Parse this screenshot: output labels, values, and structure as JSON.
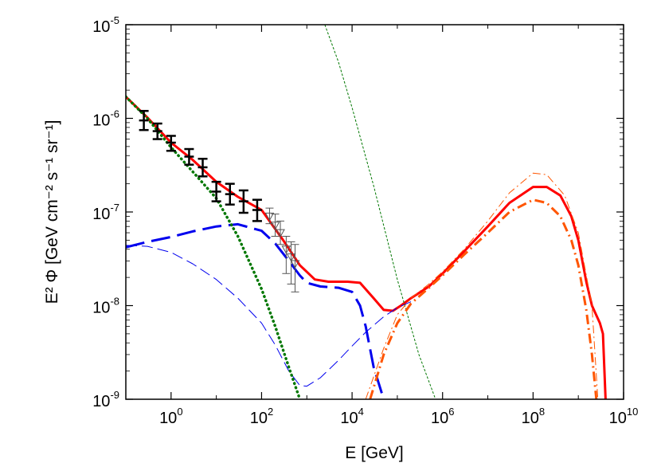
{
  "chart_data": {
    "type": "line",
    "title": "",
    "xlabel": "E [GeV]",
    "ylabel": "E² Φ [GeV cm⁻² s⁻¹ sr⁻¹]",
    "xscale": "log",
    "yscale": "log",
    "xlim": [
      0.1,
      10000000000.0
    ],
    "ylim": [
      1e-09,
      1e-05
    ],
    "x_ticks": [
      {
        "base": "10",
        "exp": "0",
        "value": 1
      },
      {
        "base": "10",
        "exp": "2",
        "value": 100
      },
      {
        "base": "10",
        "exp": "4",
        "value": 10000
      },
      {
        "base": "10",
        "exp": "6",
        "value": 1000000
      },
      {
        "base": "10",
        "exp": "8",
        "value": 100000000
      },
      {
        "base": "10",
        "exp": "10",
        "value": 10000000000
      }
    ],
    "y_ticks": [
      {
        "base": "10",
        "exp": "-9",
        "value": 1e-09
      },
      {
        "base": "10",
        "exp": "-8",
        "value": 1e-08
      },
      {
        "base": "10",
        "exp": "-7",
        "value": 1e-07
      },
      {
        "base": "10",
        "exp": "-6",
        "value": 1e-06
      },
      {
        "base": "10",
        "exp": "-5",
        "value": 1e-05
      }
    ],
    "grid": false,
    "legend": "none",
    "series": [
      {
        "id": "total",
        "color": "#ff0000",
        "style": "solid",
        "width": 3,
        "x": [
          0.1,
          0.3,
          1,
          3,
          10,
          30,
          100,
          300,
          700,
          1500,
          3000,
          8000,
          15000,
          30000,
          50000,
          80000,
          120000,
          200000,
          500000,
          1000000,
          3000000,
          10000000,
          30000000,
          100000000,
          200000000,
          400000000,
          700000000,
          1000000000,
          1500000000,
          2000000000,
          3000000000,
          3500000000,
          4000000000
        ],
        "y": [
          1.7e-06,
          1.02e-06,
          5.5e-07,
          3.6e-07,
          2.1e-07,
          1.45e-07,
          1.05e-07,
          5e-08,
          2.7e-08,
          1.9e-08,
          1.8e-08,
          1.8e-08,
          1.75e-08,
          1.2e-08,
          9e-09,
          8.8e-09,
          1e-08,
          1.2e-08,
          1.6e-08,
          2.2e-08,
          3.8e-08,
          7e-08,
          1.25e-07,
          1.85e-07,
          1.85e-07,
          1.5e-07,
          9e-08,
          5e-08,
          1.8e-08,
          1e-08,
          6.5e-09,
          5e-09,
          1e-09
        ]
      },
      {
        "id": "dashed-thick",
        "color": "#0000ee",
        "style": "dash-long",
        "width": 3,
        "x": [
          0.1,
          0.3,
          1,
          3,
          10,
          30,
          100,
          200,
          400,
          700,
          1000,
          2000,
          5000,
          10000,
          15000,
          20000,
          30000,
          50000
        ],
        "y": [
          4.2e-08,
          4.8e-08,
          5.4e-08,
          6.2e-08,
          7e-08,
          7.4e-08,
          6.3e-08,
          4.6e-08,
          3e-08,
          2.1e-08,
          1.75e-08,
          1.6e-08,
          1.55e-08,
          1.4e-08,
          1e-08,
          6e-09,
          2.2e-09,
          1e-09
        ]
      },
      {
        "id": "dashed-thin",
        "color": "#0000ee",
        "style": "dash",
        "width": 1,
        "x": [
          0.1,
          0.3,
          1,
          3,
          10,
          30,
          100,
          200,
          400,
          700,
          1000,
          2000,
          5000,
          10000,
          20000,
          50000,
          100000,
          200000
        ],
        "y": [
          4.4e-08,
          4.3e-08,
          3.7e-08,
          2.8e-08,
          1.9e-08,
          1.2e-08,
          6.5e-09,
          3.8e-09,
          2e-09,
          1.4e-09,
          1.38e-09,
          1.7e-09,
          2.6e-09,
          3.7e-09,
          5.2e-09,
          7.6e-09,
          9.5e-09,
          1.1e-08
        ]
      },
      {
        "id": "dotted-thick",
        "color": "#007700",
        "style": "dot",
        "width": 3.5,
        "x": [
          0.1,
          0.3,
          1,
          3,
          10,
          30,
          100,
          200,
          400,
          700
        ],
        "y": [
          1.7e-06,
          1e-06,
          4.9e-07,
          2.7e-07,
          1.4e-07,
          5.5e-08,
          1.5e-08,
          6e-09,
          2.2e-09,
          1e-09
        ]
      },
      {
        "id": "dotted-thin",
        "color": "#007700",
        "style": "fine-dash",
        "width": 1,
        "x": [
          2500,
          5000,
          10000,
          30000,
          100000,
          300000,
          700000
        ],
        "y": [
          1e-05,
          4e-06,
          1.3e-06,
          1.9e-07,
          1.9e-08,
          3e-09,
          1e-09
        ]
      },
      {
        "id": "dashdot-thick",
        "color": "#ff5500",
        "style": "dashdot",
        "width": 3,
        "x": [
          25000,
          50000,
          100000,
          200000,
          500000,
          1000000,
          3000000,
          10000000,
          30000000,
          100000000,
          200000000,
          400000000,
          700000000,
          1000000000,
          1500000000,
          2000000000,
          2500000000
        ],
        "y": [
          1e-09,
          3e-09,
          6.5e-09,
          1.05e-08,
          1.55e-08,
          2.1e-08,
          3.5e-08,
          6e-08,
          1e-07,
          1.35e-07,
          1.25e-07,
          9e-08,
          5e-08,
          2.7e-08,
          9e-09,
          3e-09,
          1e-09
        ]
      },
      {
        "id": "dashdot-thin",
        "color": "#ff5500",
        "style": "dashdot",
        "width": 1,
        "x": [
          20000,
          50000,
          100000,
          200000,
          500000,
          1000000,
          3000000,
          10000000,
          30000000,
          100000000,
          200000000,
          500000000,
          1000000000,
          2000000000,
          2700000000
        ],
        "y": [
          1e-09,
          3.5e-09,
          8e-09,
          1.2e-08,
          1.7e-08,
          2.3e-08,
          4e-08,
          8e-08,
          1.6e-07,
          2.6e-07,
          2.5e-07,
          1.5e-07,
          6e-08,
          1e-08,
          1e-09
        ]
      }
    ],
    "error_bars": {
      "color": "#000000",
      "points": [
        {
          "x": 0.25,
          "y": 9.5e-07,
          "lo": 7.5e-07,
          "hi": 1.2e-06
        },
        {
          "x": 0.5,
          "y": 7.3e-07,
          "lo": 6e-07,
          "hi": 8.8e-07
        },
        {
          "x": 1.0,
          "y": 5.5e-07,
          "lo": 4.5e-07,
          "hi": 6.5e-07
        },
        {
          "x": 2.5,
          "y": 3.9e-07,
          "lo": 3.2e-07,
          "hi": 4.7e-07
        },
        {
          "x": 5.0,
          "y": 3e-07,
          "lo": 2.4e-07,
          "hi": 3.7e-07
        },
        {
          "x": 10,
          "y": 1.65e-07,
          "lo": 1.3e-07,
          "hi": 2.1e-07
        },
        {
          "x": 20,
          "y": 1.55e-07,
          "lo": 1.2e-07,
          "hi": 2e-07
        },
        {
          "x": 40,
          "y": 1.3e-07,
          "lo": 9.8e-08,
          "hi": 1.7e-07
        },
        {
          "x": 80,
          "y": 1.05e-07,
          "lo": 8e-08,
          "hi": 1.35e-07
        }
      ]
    },
    "upper_limits": {
      "color": "#555555",
      "points": [
        {
          "x": 150,
          "y": 9e-08,
          "lo": 7.5e-08,
          "hi": 1.1e-07
        },
        {
          "x": 200,
          "y": 7.2e-08,
          "lo": 5.5e-08,
          "hi": 9.5e-08
        },
        {
          "x": 260,
          "y": 6e-08,
          "lo": 4.5e-08,
          "hi": 8e-08
        },
        {
          "x": 350,
          "y": 4e-08,
          "lo": 2.2e-08,
          "hi": 5.5e-08
        },
        {
          "x": 450,
          "y": 3.3e-08,
          "lo": 1.7e-08,
          "hi": 4.8e-08
        },
        {
          "x": 550,
          "y": 2.8e-08,
          "lo": 1.4e-08,
          "hi": 4.5e-08
        }
      ]
    }
  }
}
